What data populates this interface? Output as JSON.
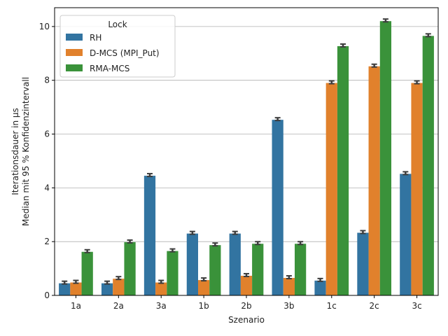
{
  "chart_data": {
    "type": "bar",
    "title": "",
    "xlabel": "Szenario",
    "ylabel_lines": [
      "Iterationsdauer in µs",
      "Median mit 95 % Konfidenzintervall"
    ],
    "categories": [
      "1a",
      "2a",
      "3a",
      "1b",
      "2b",
      "3b",
      "1c",
      "2c",
      "3c"
    ],
    "ylim": [
      0,
      10.7
    ],
    "yticks": [
      0,
      2,
      4,
      6,
      8,
      10
    ],
    "grid": "horizontal",
    "legend": {
      "title": "Lock",
      "placement": "top-left"
    },
    "series": [
      {
        "name": "RH",
        "color": "#3274a1",
        "values": [
          0.45,
          0.45,
          4.45,
          2.3,
          2.3,
          6.53,
          0.55,
          2.33,
          4.52
        ]
      },
      {
        "name": "D-MCS (MPI_Put)",
        "color": "#e1812c",
        "values": [
          0.48,
          0.62,
          0.48,
          0.57,
          0.73,
          0.65,
          7.9,
          8.52,
          7.9
        ]
      },
      {
        "name": "RMA-MCS",
        "color": "#3a923a",
        "values": [
          1.62,
          1.98,
          1.65,
          1.87,
          1.92,
          1.92,
          9.27,
          10.2,
          9.65
        ]
      }
    ]
  }
}
